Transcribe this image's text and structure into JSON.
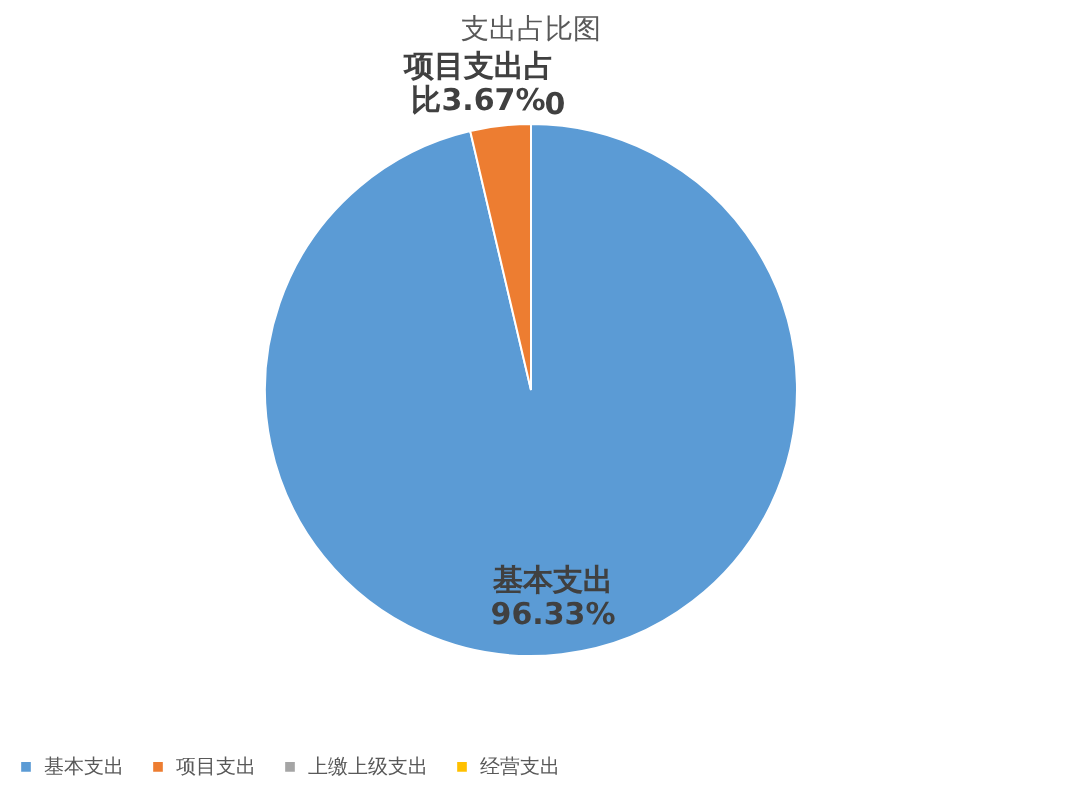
{
  "chart_data": {
    "type": "pie",
    "title": "支出占比图",
    "categories": [
      "基本支出",
      "项目支出",
      "上缴上级支出",
      "经营支出"
    ],
    "values": [
      96.33,
      3.67,
      0,
      0
    ],
    "colors": [
      "#5b9bd5",
      "#ed7d31",
      "#a5a5a5",
      "#ffc000"
    ],
    "value_labels": [
      "基本支出96.33%",
      "项目支出占比3.67%",
      "0",
      null
    ],
    "legend": "bottom"
  }
}
